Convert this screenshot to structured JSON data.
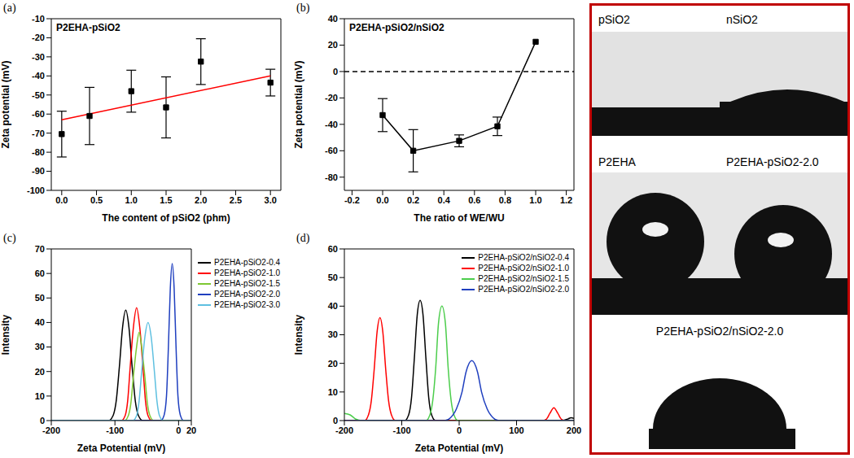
{
  "chart_data": [
    {
      "label": "(a)",
      "type": "scatter",
      "title": "P2EHA-pSiO2",
      "x_label": "The content of pSiO2 (phm)",
      "y_label": "Zeta potential (mV)",
      "xlim": [
        -0.15,
        3.15
      ],
      "xticks": [
        {
          "value": 0,
          "label": "0.0"
        },
        0.5,
        {
          "value": 1,
          "label": "1.0"
        },
        1.5,
        {
          "value": 2,
          "label": "2.0"
        },
        2.5,
        {
          "value": 3,
          "label": "3.0"
        }
      ],
      "ylim": [
        -100,
        -10
      ],
      "yticks": [
        -100,
        -90,
        -80,
        -70,
        -60,
        -50,
        -40,
        -30,
        -20,
        -10
      ],
      "series": [
        {
          "type": "scatter",
          "marker": "square",
          "color": "#000000",
          "x": [
            0,
            0.4,
            1,
            1.5,
            2,
            3
          ],
          "values": [
            -70.5,
            -61,
            -48,
            -56.5,
            -32.5,
            -43.5
          ],
          "errors": [
            12,
            15,
            11,
            16,
            12,
            7
          ]
        },
        {
          "type": "line",
          "color": "#ff0000",
          "x": [
            0,
            3
          ],
          "values": [
            -63,
            -40
          ]
        }
      ]
    },
    {
      "label": "(b)",
      "type": "line",
      "title": "P2EHA-pSiO2/nSiO2",
      "x_label": "The ratio of WE/WU",
      "y_label": "Zeta potential (mV)",
      "xlim": [
        -0.25,
        1.25
      ],
      "xticks": [
        -0.2,
        {
          "value": 0,
          "label": "0.0"
        },
        0.2,
        0.4,
        0.6,
        0.8,
        {
          "value": 1,
          "label": "1.0"
        },
        1.2
      ],
      "ylim": [
        -90,
        40
      ],
      "yticks": [
        -80,
        -60,
        -40,
        -20,
        0,
        20,
        40
      ],
      "series": [
        {
          "type": "line",
          "marker": "square",
          "color": "#000000",
          "x": [
            0,
            0.2,
            0.5,
            0.75,
            1
          ],
          "values": [
            -33,
            -60,
            -52.5,
            -41.5,
            22.5
          ],
          "errors": [
            12.5,
            16,
            4.5,
            7,
            0
          ]
        },
        {
          "type": "line",
          "line_style": "dashed",
          "color": "#000000",
          "x": [
            -0.25,
            1.25
          ],
          "values": [
            0,
            0
          ]
        }
      ]
    },
    {
      "label": "(c)",
      "type": "line",
      "x_label": "Zeta Potential (mV)",
      "y_label": "Intensity",
      "xlim": [
        -200,
        20
      ],
      "xticks": [
        -200,
        -100,
        0,
        20
      ],
      "ylim": [
        0,
        70
      ],
      "yticks": [
        0,
        10,
        20,
        30,
        40,
        50,
        60,
        70
      ],
      "legend": "right",
      "series": [
        {
          "name": "P2EHA-pSiO2-0.4",
          "color": "#000000",
          "x": [
            -200,
            -110,
            -103,
            -98,
            -93,
            -88,
            -83,
            -78,
            -73,
            -68,
            -63,
            -56,
            20
          ],
          "values": [
            0,
            0,
            2,
            8,
            22,
            38,
            45,
            38,
            22,
            8,
            2,
            0,
            0
          ]
        },
        {
          "name": "P2EHA-pSiO2-1.0",
          "color": "#ff0000",
          "x": [
            -200,
            -90,
            -84,
            -80,
            -76,
            -71,
            -66,
            -61,
            -56,
            -52,
            -48,
            -42,
            20
          ],
          "values": [
            0,
            0,
            2,
            8,
            22,
            38,
            46,
            38,
            22,
            8,
            2,
            0,
            0
          ]
        },
        {
          "name": "P2EHA-pSiO2-1.5",
          "color": "#7ec832",
          "x": [
            -200,
            -85,
            -79,
            -75,
            -71,
            -66,
            -62,
            -58,
            -53,
            -49,
            -45,
            -39,
            20
          ],
          "values": [
            0,
            0,
            2,
            7,
            18,
            30,
            36,
            30,
            18,
            7,
            2,
            0,
            0
          ]
        },
        {
          "name": "P2EHA-pSiO2-2.0",
          "color": "#1f3fbf",
          "x": [
            -200,
            -28,
            -23,
            -19,
            -16,
            -13,
            -10,
            -7,
            -4,
            -1,
            3,
            8,
            20
          ],
          "values": [
            0,
            0,
            2,
            10,
            30,
            54,
            64,
            54,
            30,
            10,
            2,
            0,
            0
          ]
        },
        {
          "name": "P2EHA-pSiO2-3.0",
          "color": "#5fc0e0",
          "x": [
            -200,
            -72,
            -66,
            -62,
            -58,
            -53,
            -48,
            -43,
            -38,
            -34,
            -30,
            -24,
            20
          ],
          "values": [
            0,
            0,
            2,
            8,
            20,
            34,
            40,
            34,
            20,
            8,
            2,
            0,
            0
          ]
        }
      ]
    },
    {
      "label": "(d)",
      "type": "line",
      "x_label": "Zeta Potential (mV)",
      "y_label": "Intensity",
      "xlim": [
        -200,
        200
      ],
      "xticks": [
        -200,
        -100,
        0,
        100,
        200
      ],
      "ylim": [
        0,
        60
      ],
      "yticks": [
        0,
        10,
        20,
        30,
        40,
        50,
        60
      ],
      "legend": "top-right",
      "series": [
        {
          "name": "P2EHA-pSiO2/nSiO2-0.4",
          "color": "#000000",
          "x": [
            -200,
            -95,
            -88,
            -83,
            -78,
            -73,
            -68,
            -63,
            -58,
            -53,
            -48,
            -41,
            180,
            190,
            195,
            200
          ],
          "values": [
            0,
            0,
            2,
            8,
            22,
            37,
            42,
            37,
            22,
            8,
            2,
            0,
            0,
            0.6,
            1,
            0.8
          ]
        },
        {
          "name": "P2EHA-pSiO2/nSiO2-1.0",
          "color": "#ff0000",
          "x": [
            -200,
            -165,
            -158,
            -153,
            -148,
            -143,
            -138,
            -133,
            -128,
            -123,
            -118,
            -111,
            145,
            152,
            158,
            165,
            172,
            178,
            185,
            200
          ],
          "values": [
            0,
            0,
            2,
            7,
            18,
            31,
            36,
            31,
            18,
            7,
            2,
            0,
            0,
            0.5,
            2.5,
            4.5,
            2.5,
            0.5,
            0,
            0
          ]
        },
        {
          "name": "P2EHA-pSiO2/nSiO2-1.5",
          "color": "#4ccd4c",
          "x": [
            -200,
            -190,
            -180,
            -170,
            -58,
            -51,
            -46,
            -41,
            -36,
            -30,
            -24,
            -19,
            -14,
            -9,
            -2,
            200
          ],
          "values": [
            2.5,
            2,
            0.5,
            0,
            0,
            2,
            7,
            18,
            34,
            40,
            34,
            18,
            7,
            2,
            0,
            0
          ]
        },
        {
          "name": "P2EHA-pSiO2/nSiO2-2.0",
          "color": "#1f3fbf",
          "x": [
            -200,
            -25,
            -15,
            -5,
            5,
            12,
            22,
            32,
            39,
            49,
            59,
            69,
            200
          ],
          "values": [
            0,
            0,
            1,
            4,
            10,
            17,
            21,
            17,
            10,
            4,
            1,
            0,
            0
          ]
        }
      ]
    }
  ],
  "photos": {
    "rows": [
      [
        "pSiO2",
        "nSiO2"
      ],
      [
        "P2EHA",
        "P2EHA-pSiO2-2.0"
      ],
      [
        "P2EHA-pSiO2/nSiO2-2.0"
      ]
    ]
  }
}
